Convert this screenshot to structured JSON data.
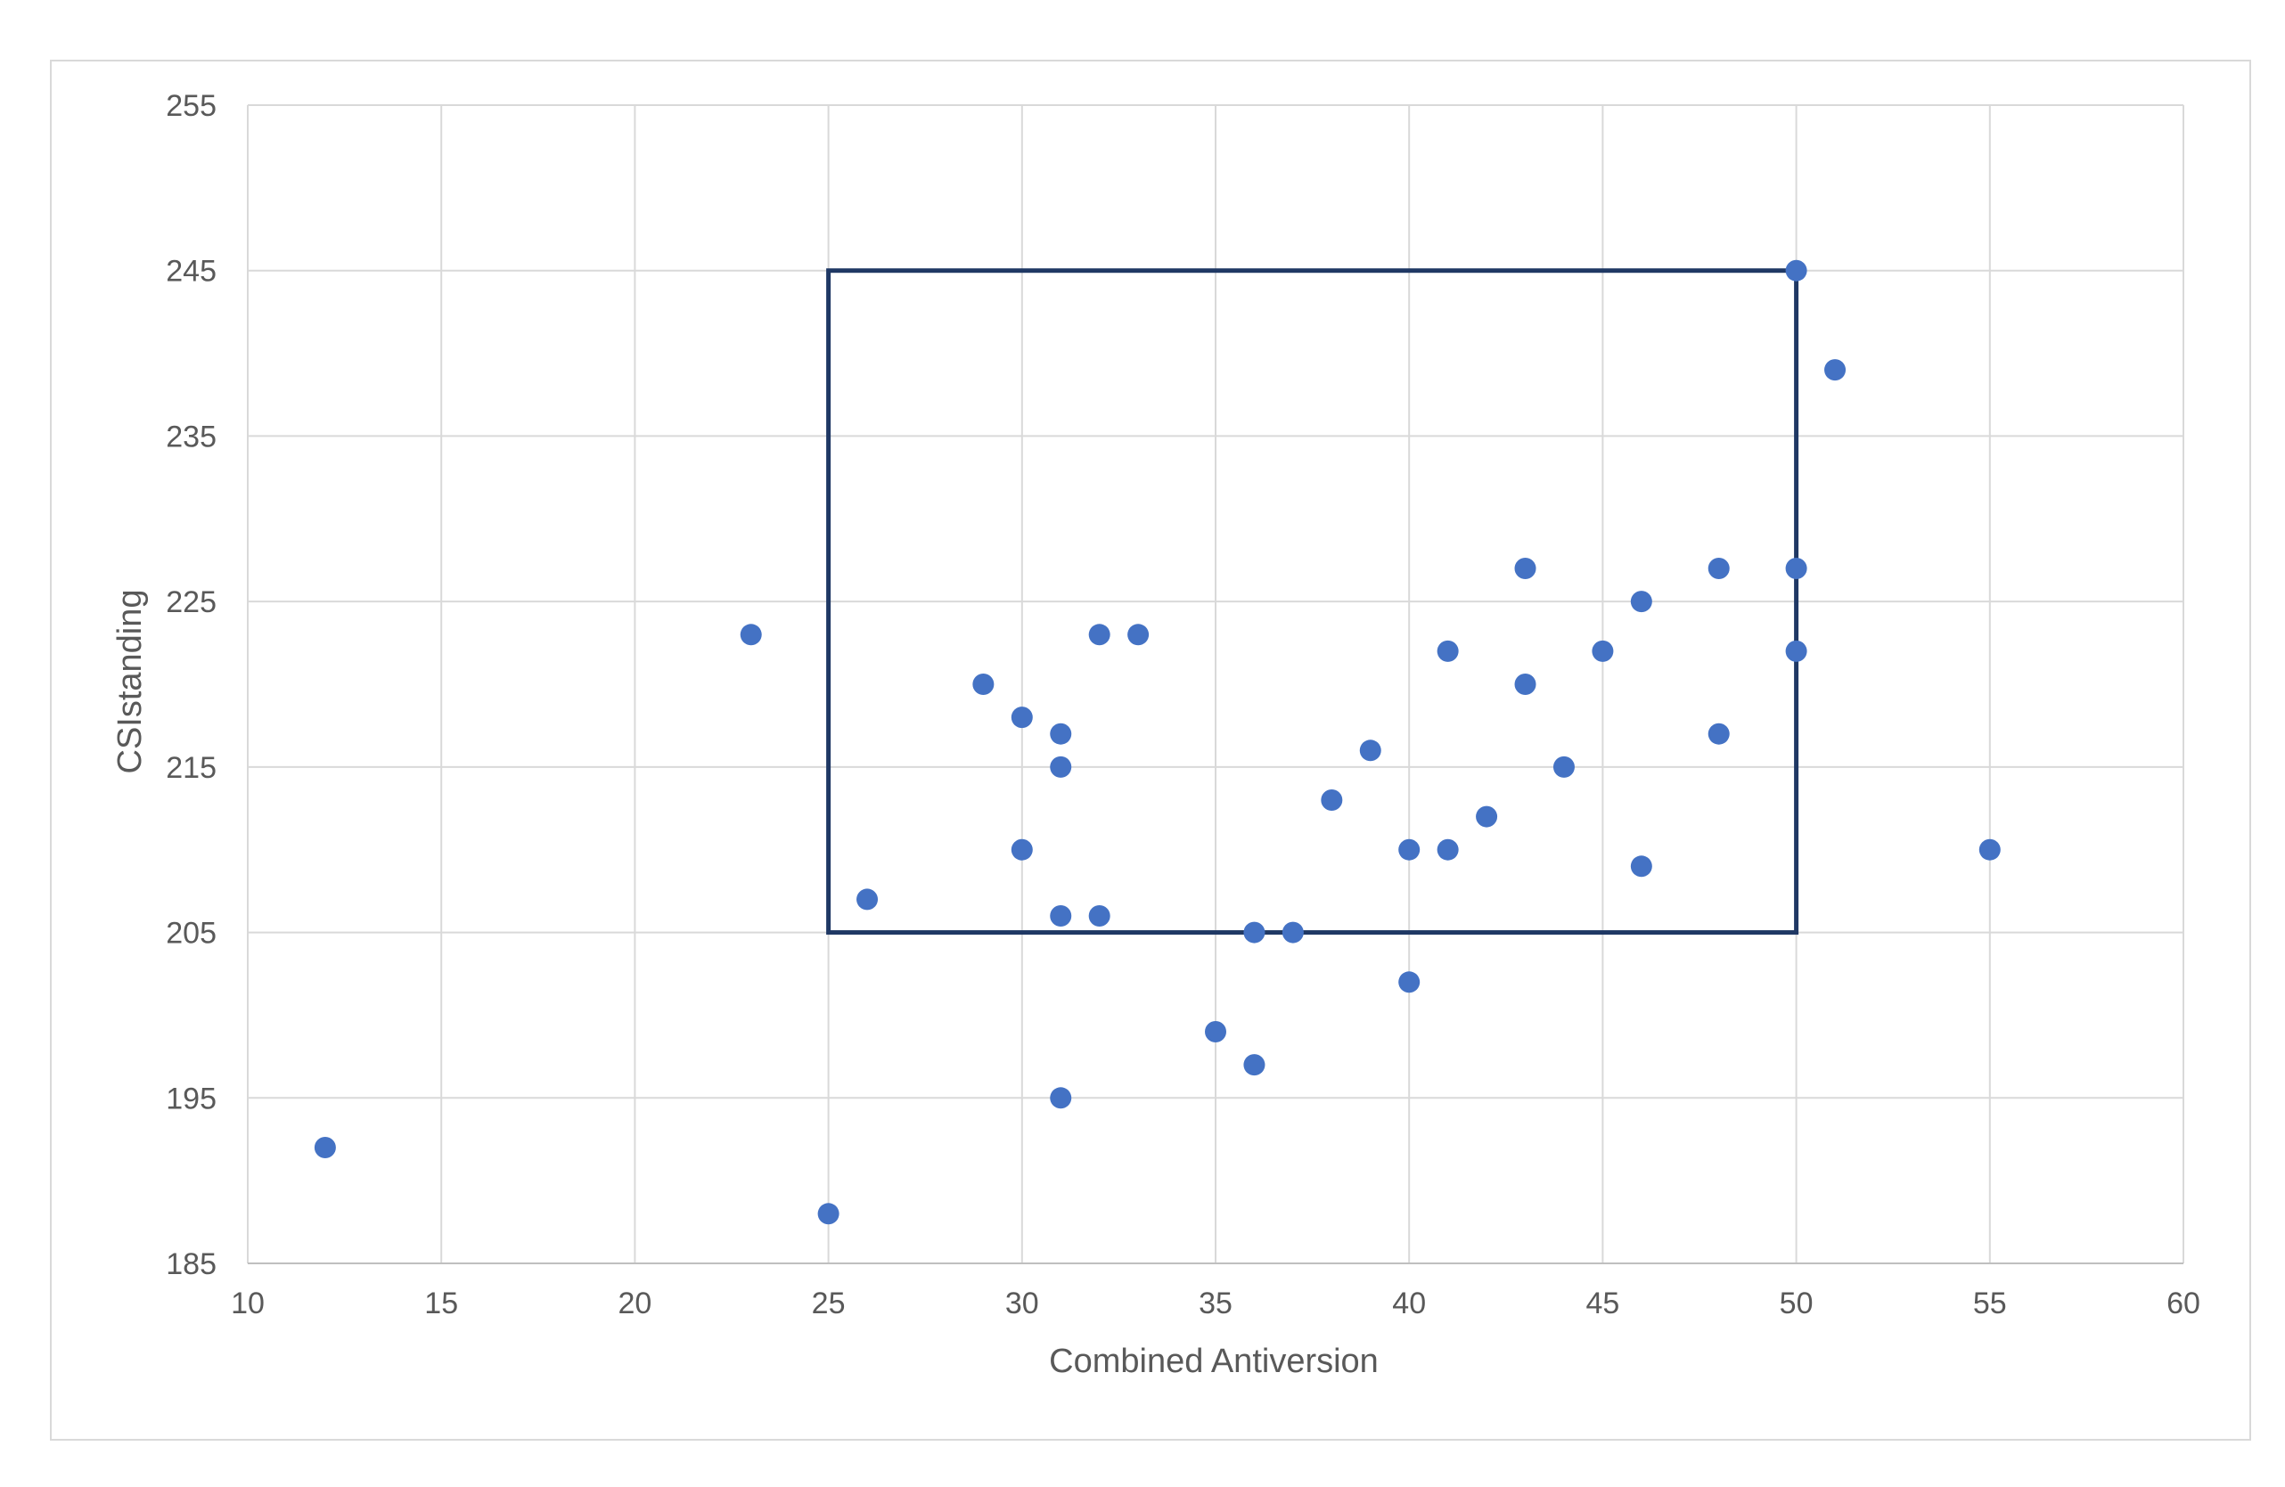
{
  "chart_data": {
    "type": "scatter",
    "title": "",
    "xlabel": "Combined Antiversion",
    "ylabel": "CSIstanding",
    "xlim": [
      10,
      60
    ],
    "ylim": [
      185,
      255
    ],
    "xticks": [
      10,
      15,
      20,
      25,
      30,
      35,
      40,
      45,
      50,
      55,
      60
    ],
    "yticks": [
      185,
      195,
      205,
      215,
      225,
      235,
      245,
      255
    ],
    "grid": true,
    "legend": "none",
    "marker_color": "#4472C4",
    "series": [
      {
        "points": [
          {
            "x": 12,
            "y": 192
          },
          {
            "x": 23,
            "y": 223
          },
          {
            "x": 25,
            "y": 188
          },
          {
            "x": 26,
            "y": 207
          },
          {
            "x": 29,
            "y": 220
          },
          {
            "x": 30,
            "y": 218
          },
          {
            "x": 30,
            "y": 210
          },
          {
            "x": 31,
            "y": 217
          },
          {
            "x": 31,
            "y": 215
          },
          {
            "x": 31,
            "y": 206
          },
          {
            "x": 31,
            "y": 195
          },
          {
            "x": 32,
            "y": 223
          },
          {
            "x": 32,
            "y": 206
          },
          {
            "x": 33,
            "y": 223
          },
          {
            "x": 35,
            "y": 199
          },
          {
            "x": 36,
            "y": 205
          },
          {
            "x": 36,
            "y": 197
          },
          {
            "x": 37,
            "y": 205
          },
          {
            "x": 38,
            "y": 213
          },
          {
            "x": 39,
            "y": 216
          },
          {
            "x": 40,
            "y": 210
          },
          {
            "x": 40,
            "y": 202
          },
          {
            "x": 41,
            "y": 222
          },
          {
            "x": 41,
            "y": 210
          },
          {
            "x": 42,
            "y": 212
          },
          {
            "x": 43,
            "y": 227
          },
          {
            "x": 43,
            "y": 220
          },
          {
            "x": 44,
            "y": 215
          },
          {
            "x": 45,
            "y": 222
          },
          {
            "x": 46,
            "y": 225
          },
          {
            "x": 46,
            "y": 209
          },
          {
            "x": 48,
            "y": 227
          },
          {
            "x": 48,
            "y": 217
          },
          {
            "x": 50,
            "y": 245
          },
          {
            "x": 50,
            "y": 227
          },
          {
            "x": 50,
            "y": 222
          },
          {
            "x": 51,
            "y": 239
          },
          {
            "x": 55,
            "y": 210
          }
        ]
      }
    ],
    "annotations": [
      {
        "type": "rectangle",
        "x_range": [
          25,
          50
        ],
        "y_range": [
          205,
          245
        ],
        "color": "#1F3864"
      }
    ]
  }
}
